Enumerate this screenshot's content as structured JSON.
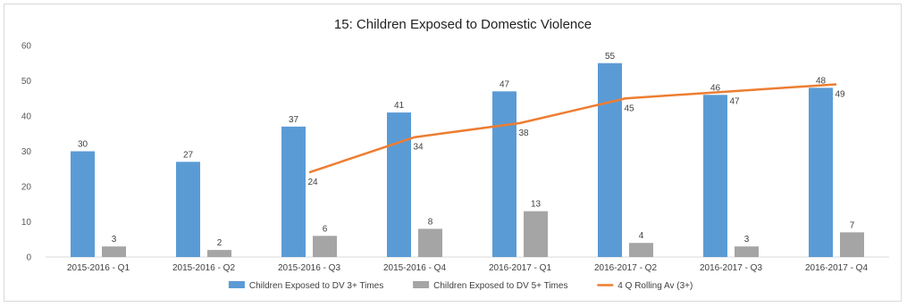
{
  "chart_data": {
    "type": "bar",
    "title": "15: Children Exposed to Domestic Violence",
    "xlabel": "",
    "ylabel": "",
    "ylim": [
      0,
      60
    ],
    "yticks": [
      0,
      10,
      20,
      30,
      40,
      50,
      60
    ],
    "grid": false,
    "legend_position": "bottom",
    "categories": [
      "2015-2016 - Q1",
      "2015-2016 - Q2",
      "2015-2016 - Q3",
      "2015-2016 - Q4",
      "2016-2017 - Q1",
      "2016-2017 - Q2",
      "2016-2017 - Q3",
      "2016-2017 - Q4"
    ],
    "series": [
      {
        "name": "Children Exposed to DV 3+ Times",
        "kind": "bar",
        "color": "#5b9bd5",
        "values": [
          30,
          27,
          37,
          41,
          47,
          55,
          46,
          48
        ]
      },
      {
        "name": "Children Exposed to DV 5+ Times",
        "kind": "bar",
        "color": "#a5a5a5",
        "values": [
          3,
          2,
          6,
          8,
          13,
          4,
          3,
          7
        ]
      },
      {
        "name": "4 Q Rolling Av (3+)",
        "kind": "line",
        "color": "#ed7d31",
        "values": [
          null,
          null,
          24,
          34,
          38,
          45,
          47,
          49
        ]
      }
    ]
  }
}
